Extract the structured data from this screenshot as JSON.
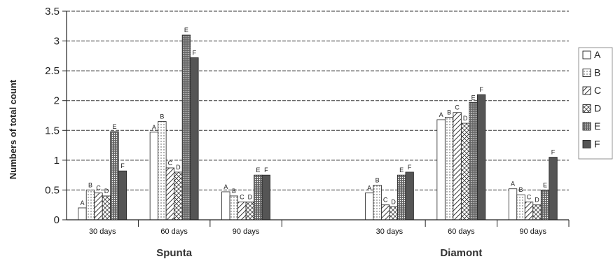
{
  "chart_data": {
    "type": "bar",
    "ylabel": "Numbers of total count",
    "ylim": [
      0,
      3.5
    ],
    "yticks": [
      "0",
      "0.5",
      "1",
      "1.5",
      "2",
      "2.5",
      "3",
      "3.5"
    ],
    "grid": true,
    "legend_position": "right",
    "legend": [
      "A",
      "B",
      "C",
      "D",
      "E",
      "F"
    ],
    "groups": [
      {
        "name": "Spunta",
        "categories": [
          {
            "label": "30 days",
            "values": [
              0.2,
              0.5,
              0.45,
              0.4,
              1.48,
              0.82
            ]
          },
          {
            "label": "60 days",
            "values": [
              1.47,
              1.65,
              0.87,
              0.8,
              3.1,
              2.72
            ]
          },
          {
            "label": "90 days",
            "values": [
              0.47,
              0.4,
              0.3,
              0.3,
              0.75,
              0.75
            ]
          }
        ]
      },
      {
        "name": "Diamont",
        "categories": [
          {
            "label": "30 days",
            "values": [
              0.45,
              0.58,
              0.25,
              0.22,
              0.75,
              0.8
            ]
          },
          {
            "label": "60 days",
            "values": [
              1.68,
              1.72,
              1.8,
              1.62,
              1.97,
              2.1
            ]
          },
          {
            "label": "90 days",
            "values": [
              0.52,
              0.42,
              0.3,
              0.25,
              0.5,
              1.05
            ]
          }
        ]
      }
    ]
  }
}
